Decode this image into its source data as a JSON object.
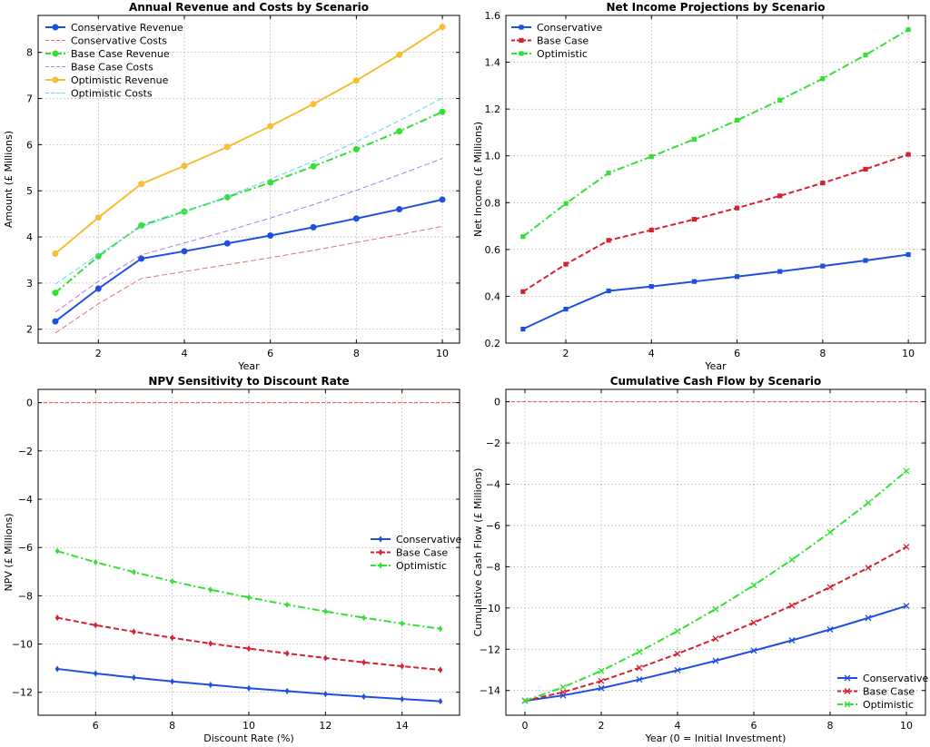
{
  "colors": {
    "conservative": "#1f4fe0",
    "base": "#d62130",
    "optimistic": "#33e033",
    "optimistic_revenue": "#f7bd34",
    "conservative_costs": "#e87070",
    "base_costs": "#b27cf0",
    "optimistic_costs": "#5fd8f0",
    "zero_line": "#e05050"
  },
  "chart_data": [
    {
      "type": "line",
      "title": "Annual Revenue and Costs by Scenario",
      "xlabel": "Year",
      "ylabel": "Amount (£ Millions)",
      "xlim": [
        0.6,
        10.4
      ],
      "ylim": [
        1.7,
        8.8
      ],
      "xticks": [
        2,
        4,
        6,
        8,
        10
      ],
      "yticks": [
        2,
        3,
        4,
        5,
        6,
        7,
        8
      ],
      "grid": true,
      "legend": "top-left",
      "x": [
        1,
        2,
        3,
        4,
        5,
        6,
        7,
        8,
        9,
        10
      ],
      "series": [
        {
          "name": "Conservative Revenue",
          "color": "#1f4fe0",
          "style": "solid",
          "marker": "circle",
          "values": [
            2.17,
            2.88,
            3.53,
            3.69,
            3.86,
            4.03,
            4.21,
            4.4,
            4.6,
            4.81
          ]
        },
        {
          "name": "Conservative Costs",
          "color": "#e87070",
          "style": "dashed",
          "marker": "none",
          "values": [
            1.92,
            2.55,
            3.1,
            3.25,
            3.4,
            3.55,
            3.71,
            3.88,
            4.05,
            4.23
          ]
        },
        {
          "name": "Base Case Revenue",
          "color": "#33e033",
          "style": "dashdot",
          "marker": "circle",
          "values": [
            2.79,
            3.58,
            4.25,
            4.55,
            4.86,
            5.18,
            5.53,
            5.9,
            6.29,
            6.71
          ]
        },
        {
          "name": "Base Case Costs",
          "color": "#b27cf0",
          "style": "dashed",
          "marker": "none",
          "values": [
            2.37,
            3.04,
            3.61,
            3.87,
            4.13,
            4.41,
            4.7,
            5.01,
            5.35,
            5.7
          ]
        },
        {
          "name": "Optimistic Revenue",
          "color": "#f7bd34",
          "style": "solid",
          "marker": "circle",
          "values": [
            3.64,
            4.42,
            5.15,
            5.54,
            5.95,
            6.4,
            6.88,
            7.39,
            7.95,
            8.55
          ]
        },
        {
          "name": "Optimistic Costs",
          "color": "#5fd8f0",
          "style": "dashed",
          "marker": "none",
          "values": [
            2.98,
            3.62,
            4.22,
            4.54,
            4.88,
            5.25,
            5.64,
            6.06,
            6.52,
            7.01
          ]
        }
      ]
    },
    {
      "type": "line",
      "title": "Net Income Projections by Scenario",
      "xlabel": "Year",
      "ylabel": "Net Income (£ Millions)",
      "xlim": [
        0.6,
        10.4
      ],
      "ylim": [
        0.2,
        1.6
      ],
      "xticks": [
        2,
        4,
        6,
        8,
        10
      ],
      "yticks": [
        0.2,
        0.4,
        0.6,
        0.8,
        1.0,
        1.2,
        1.4,
        1.6
      ],
      "ytick_labels": [
        "0.2",
        "0.4",
        "0.6",
        "0.8",
        "1.0",
        "1.2",
        "1.4",
        "1.6"
      ],
      "grid": true,
      "legend": "top-left",
      "x": [
        1,
        2,
        3,
        4,
        5,
        6,
        7,
        8,
        9,
        10
      ],
      "series": [
        {
          "name": "Conservative",
          "color": "#1f4fe0",
          "style": "solid",
          "marker": "square",
          "values": [
            0.26,
            0.345,
            0.423,
            0.442,
            0.463,
            0.484,
            0.506,
            0.529,
            0.553,
            0.578
          ]
        },
        {
          "name": "Base Case",
          "color": "#d62130",
          "style": "dashed",
          "marker": "square",
          "values": [
            0.42,
            0.537,
            0.639,
            0.683,
            0.729,
            0.777,
            0.829,
            0.884,
            0.943,
            1.006
          ]
        },
        {
          "name": "Optimistic",
          "color": "#33e033",
          "style": "dashdot",
          "marker": "square",
          "values": [
            0.655,
            0.796,
            0.927,
            0.997,
            1.071,
            1.152,
            1.238,
            1.33,
            1.431,
            1.539
          ]
        }
      ]
    },
    {
      "type": "line",
      "title": "NPV Sensitivity to Discount Rate",
      "xlabel": "Discount Rate (%)",
      "ylabel": "NPV (£ Millions)",
      "xlim": [
        4.5,
        15.5
      ],
      "ylim": [
        -12.95,
        0.55
      ],
      "xticks": [
        6,
        8,
        10,
        12,
        14
      ],
      "yticks": [
        0,
        -2,
        -4,
        -6,
        -8,
        -10,
        -12
      ],
      "ytick_labels": [
        "0",
        "−2",
        "−4",
        "−6",
        "−8",
        "−10",
        "−12"
      ],
      "grid": true,
      "legend": "center-right",
      "reference_line_y": 0,
      "x": [
        5,
        6,
        7,
        8,
        9,
        10,
        11,
        12,
        13,
        14,
        15
      ],
      "series": [
        {
          "name": "Conservative",
          "color": "#1f4fe0",
          "style": "solid",
          "marker": "diamond",
          "values": [
            -11.03,
            -11.22,
            -11.39,
            -11.55,
            -11.69,
            -11.83,
            -11.95,
            -12.07,
            -12.18,
            -12.28,
            -12.37
          ]
        },
        {
          "name": "Base Case",
          "color": "#d62130",
          "style": "dashed",
          "marker": "diamond",
          "values": [
            -8.91,
            -9.22,
            -9.49,
            -9.74,
            -9.98,
            -10.19,
            -10.39,
            -10.58,
            -10.76,
            -10.92,
            -11.07
          ]
        },
        {
          "name": "Optimistic",
          "color": "#33e033",
          "style": "dashdot",
          "marker": "diamond",
          "values": [
            -6.15,
            -6.61,
            -7.02,
            -7.4,
            -7.75,
            -8.07,
            -8.37,
            -8.65,
            -8.91,
            -9.15,
            -9.37
          ]
        }
      ]
    },
    {
      "type": "line",
      "title": "Cumulative Cash Flow by Scenario",
      "xlabel": "Year (0 = Initial Investment)",
      "ylabel": "Cumulative Cash Flow (£ Millions)",
      "xlim": [
        -0.5,
        10.5
      ],
      "ylim": [
        -15.2,
        0.6
      ],
      "xticks": [
        0,
        2,
        4,
        6,
        8,
        10
      ],
      "yticks": [
        0,
        -2,
        -4,
        -6,
        -8,
        -10,
        -12,
        -14
      ],
      "ytick_labels": [
        "0",
        "−2",
        "−4",
        "−6",
        "−8",
        "−10",
        "−12",
        "−14"
      ],
      "grid": true,
      "legend": "bottom-right",
      "reference_line_y": 0,
      "x": [
        0,
        1,
        2,
        3,
        4,
        5,
        6,
        7,
        8,
        9,
        10
      ],
      "series": [
        {
          "name": "Conservative",
          "color": "#1f4fe0",
          "style": "solid",
          "marker": "x",
          "values": [
            -14.5,
            -14.24,
            -13.89,
            -13.47,
            -13.02,
            -12.56,
            -12.07,
            -11.57,
            -11.04,
            -10.48,
            -9.9
          ]
        },
        {
          "name": "Base Case",
          "color": "#d62130",
          "style": "dashed",
          "marker": "x",
          "values": [
            -14.5,
            -14.08,
            -13.54,
            -12.9,
            -12.22,
            -11.49,
            -10.71,
            -9.88,
            -8.99,
            -8.05,
            -7.04
          ]
        },
        {
          "name": "Optimistic",
          "color": "#33e033",
          "style": "dashdot",
          "marker": "x",
          "values": [
            -14.5,
            -13.84,
            -13.05,
            -12.12,
            -11.12,
            -10.05,
            -8.9,
            -7.66,
            -6.33,
            -4.9,
            -3.36
          ]
        }
      ]
    }
  ]
}
